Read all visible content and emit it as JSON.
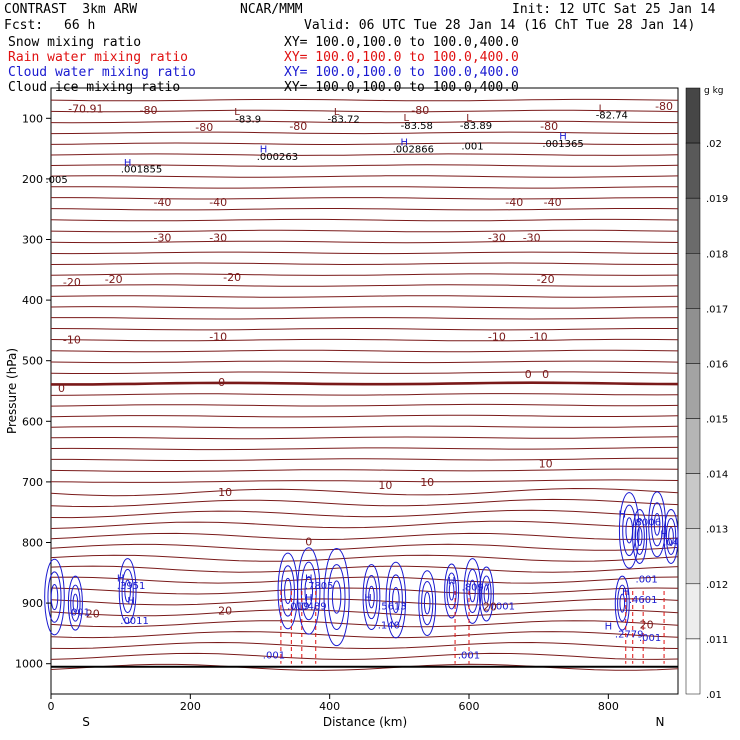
{
  "header": {
    "model": "CONTRAST  3km ARW",
    "org": "NCAR/MMM",
    "init": "Init: 12 UTC Sat 25 Jan 14",
    "fcst_label": "Fcst:",
    "fcst_value": "66 h",
    "valid": "Valid: 06 UTC Tue 28 Jan 14 (16 ChT Tue 28 Jan 14)"
  },
  "legend": [
    {
      "label": "Snow mixing ratio",
      "xy": "XY= 100.0,100.0 to 100.0,400.0",
      "color": "#000000"
    },
    {
      "label": "Rain water mixing ratio",
      "xy": "XY= 100.0,100.0 to 100.0,400.0",
      "color": "#e01010"
    },
    {
      "label": "Cloud water mixing ratio",
      "xy": "XY= 100.0,100.0 to 100.0,400.0",
      "color": "#1a1ad0"
    },
    {
      "label": "Cloud ice mixing ratio",
      "xy": "XY= 100.0,100.0 to 100.0,400.0",
      "color": "#000000"
    }
  ],
  "chart_data": {
    "type": "cross-section",
    "xlabel": "Distance (km)",
    "ylabel": "Pressure (hPa)",
    "xlim": [
      0,
      900
    ],
    "ylim": [
      1050,
      50
    ],
    "x_ticks": [
      0,
      200,
      400,
      600,
      800
    ],
    "y_ticks": [
      100,
      200,
      300,
      400,
      500,
      600,
      700,
      800,
      900,
      1000
    ],
    "left_end": "S",
    "right_end": "N",
    "colorbar": {
      "unit": "g kg",
      "unit_exp": "-1",
      "ticks": [
        ".02",
        ".019",
        ".018",
        ".017",
        ".016",
        ".015",
        ".014",
        ".013",
        ".012",
        ".011",
        ".01"
      ]
    },
    "temperature_contour_labels": [
      {
        "text": "-70.91",
        "x": 50,
        "p": 84
      },
      {
        "text": "-80",
        "x": 140,
        "p": 86
      },
      {
        "text": "-80",
        "x": 220,
        "p": 114
      },
      {
        "text": "-80",
        "x": 355,
        "p": 113
      },
      {
        "text": "-80",
        "x": 530,
        "p": 86
      },
      {
        "text": "-80",
        "x": 715,
        "p": 113
      },
      {
        "text": "-80",
        "x": 880,
        "p": 80
      },
      {
        "text": "-40",
        "x": 160,
        "p": 238
      },
      {
        "text": "-40",
        "x": 240,
        "p": 238
      },
      {
        "text": "-40",
        "x": 665,
        "p": 238
      },
      {
        "text": "-40",
        "x": 720,
        "p": 238
      },
      {
        "text": "-30",
        "x": 160,
        "p": 297
      },
      {
        "text": "-30",
        "x": 240,
        "p": 297
      },
      {
        "text": "-30",
        "x": 640,
        "p": 297
      },
      {
        "text": "-30",
        "x": 690,
        "p": 297
      },
      {
        "text": "-20",
        "x": 30,
        "p": 370
      },
      {
        "text": "-20",
        "x": 90,
        "p": 365
      },
      {
        "text": "-20",
        "x": 260,
        "p": 362
      },
      {
        "text": "-20",
        "x": 710,
        "p": 365
      },
      {
        "text": "-10",
        "x": 30,
        "p": 465
      },
      {
        "text": "-10",
        "x": 240,
        "p": 460
      },
      {
        "text": "-10",
        "x": 640,
        "p": 460
      },
      {
        "text": "-10",
        "x": 700,
        "p": 460
      },
      {
        "text": "0",
        "x": 15,
        "p": 545
      },
      {
        "text": "0",
        "x": 245,
        "p": 535
      },
      {
        "text": "0",
        "x": 685,
        "p": 522
      },
      {
        "text": "0",
        "x": 710,
        "p": 522
      },
      {
        "text": "10",
        "x": 250,
        "p": 717
      },
      {
        "text": "10",
        "x": 480,
        "p": 705
      },
      {
        "text": "10",
        "x": 540,
        "p": 700
      },
      {
        "text": "10",
        "x": 710,
        "p": 670
      },
      {
        "text": "0",
        "x": 370,
        "p": 798
      },
      {
        "text": "20",
        "x": 60,
        "p": 917
      },
      {
        "text": "20",
        "x": 250,
        "p": 912
      },
      {
        "text": "20",
        "x": 855,
        "p": 935
      },
      {
        "text": "20",
        "x": 630,
        "p": 906
      }
    ],
    "extrema_labels": [
      {
        "text": "-83.9",
        "x": 283,
        "p": 100
      },
      {
        "text": "-83.72",
        "x": 420,
        "p": 100
      },
      {
        "text": "-83.58",
        "x": 525,
        "p": 111
      },
      {
        "text": "-83.89",
        "x": 610,
        "p": 111
      },
      {
        "text": "-82.74",
        "x": 805,
        "p": 94
      },
      {
        "text": ".001855",
        "x": 130,
        "p": 183
      },
      {
        "text": ".000263",
        "x": 325,
        "p": 162
      },
      {
        "text": ".002866",
        "x": 520,
        "p": 150
      },
      {
        "text": ".001",
        "x": 605,
        "p": 145
      },
      {
        "text": ".001365",
        "x": 735,
        "p": 141
      },
      {
        "text": ".005",
        "x": 8,
        "p": 200
      },
      {
        "text": ".3951",
        "x": 115,
        "p": 870
      },
      {
        "text": ".001",
        "x": 40,
        "p": 914
      },
      {
        "text": ".0011",
        "x": 120,
        "p": 928
      },
      {
        "text": ".7805",
        "x": 385,
        "p": 870
      },
      {
        "text": ".019",
        "x": 355,
        "p": 904
      },
      {
        "text": ".0489",
        "x": 375,
        "p": 904
      },
      {
        "text": ".5613",
        "x": 490,
        "p": 904
      },
      {
        "text": ".140",
        "x": 485,
        "p": 935
      },
      {
        "text": ".8097",
        "x": 610,
        "p": 873
      },
      {
        "text": ".001",
        "x": 650,
        "p": 904
      },
      {
        "text": ".2779",
        "x": 830,
        "p": 950
      },
      {
        "text": ".8006",
        "x": 855,
        "p": 765
      },
      {
        "text": ".04",
        "x": 890,
        "p": 798
      },
      {
        "text": ".001",
        "x": 855,
        "p": 859
      },
      {
        "text": ".4601",
        "x": 850,
        "p": 893
      },
      {
        "text": ".001",
        "x": 860,
        "p": 956
      },
      {
        "text": ".001",
        "x": 320,
        "p": 985
      },
      {
        "text": ".001",
        "x": 600,
        "p": 985
      }
    ],
    "max_min_markers": [
      {
        "text": "L",
        "x": 267,
        "p": 88
      },
      {
        "text": "L",
        "x": 410,
        "p": 88
      },
      {
        "text": "L",
        "x": 510,
        "p": 98
      },
      {
        "text": "L",
        "x": 600,
        "p": 98
      },
      {
        "text": "L",
        "x": 790,
        "p": 82
      },
      {
        "text": "H",
        "x": 110,
        "p": 172
      },
      {
        "text": "H",
        "x": 305,
        "p": 150
      },
      {
        "text": "H",
        "x": 507,
        "p": 138
      },
      {
        "text": "H",
        "x": 735,
        "p": 128
      },
      {
        "text": "H",
        "x": 100,
        "p": 858
      },
      {
        "text": "H",
        "x": 115,
        "p": 895
      },
      {
        "text": "H",
        "x": 370,
        "p": 858
      },
      {
        "text": "H",
        "x": 370,
        "p": 890
      },
      {
        "text": "H",
        "x": 455,
        "p": 890
      },
      {
        "text": "H",
        "x": 575,
        "p": 862
      },
      {
        "text": "H",
        "x": 800,
        "p": 937
      },
      {
        "text": "H",
        "x": 820,
        "p": 752
      },
      {
        "text": "H",
        "x": 825,
        "p": 880
      },
      {
        "text": "H",
        "x": 880,
        "p": 785
      }
    ]
  }
}
